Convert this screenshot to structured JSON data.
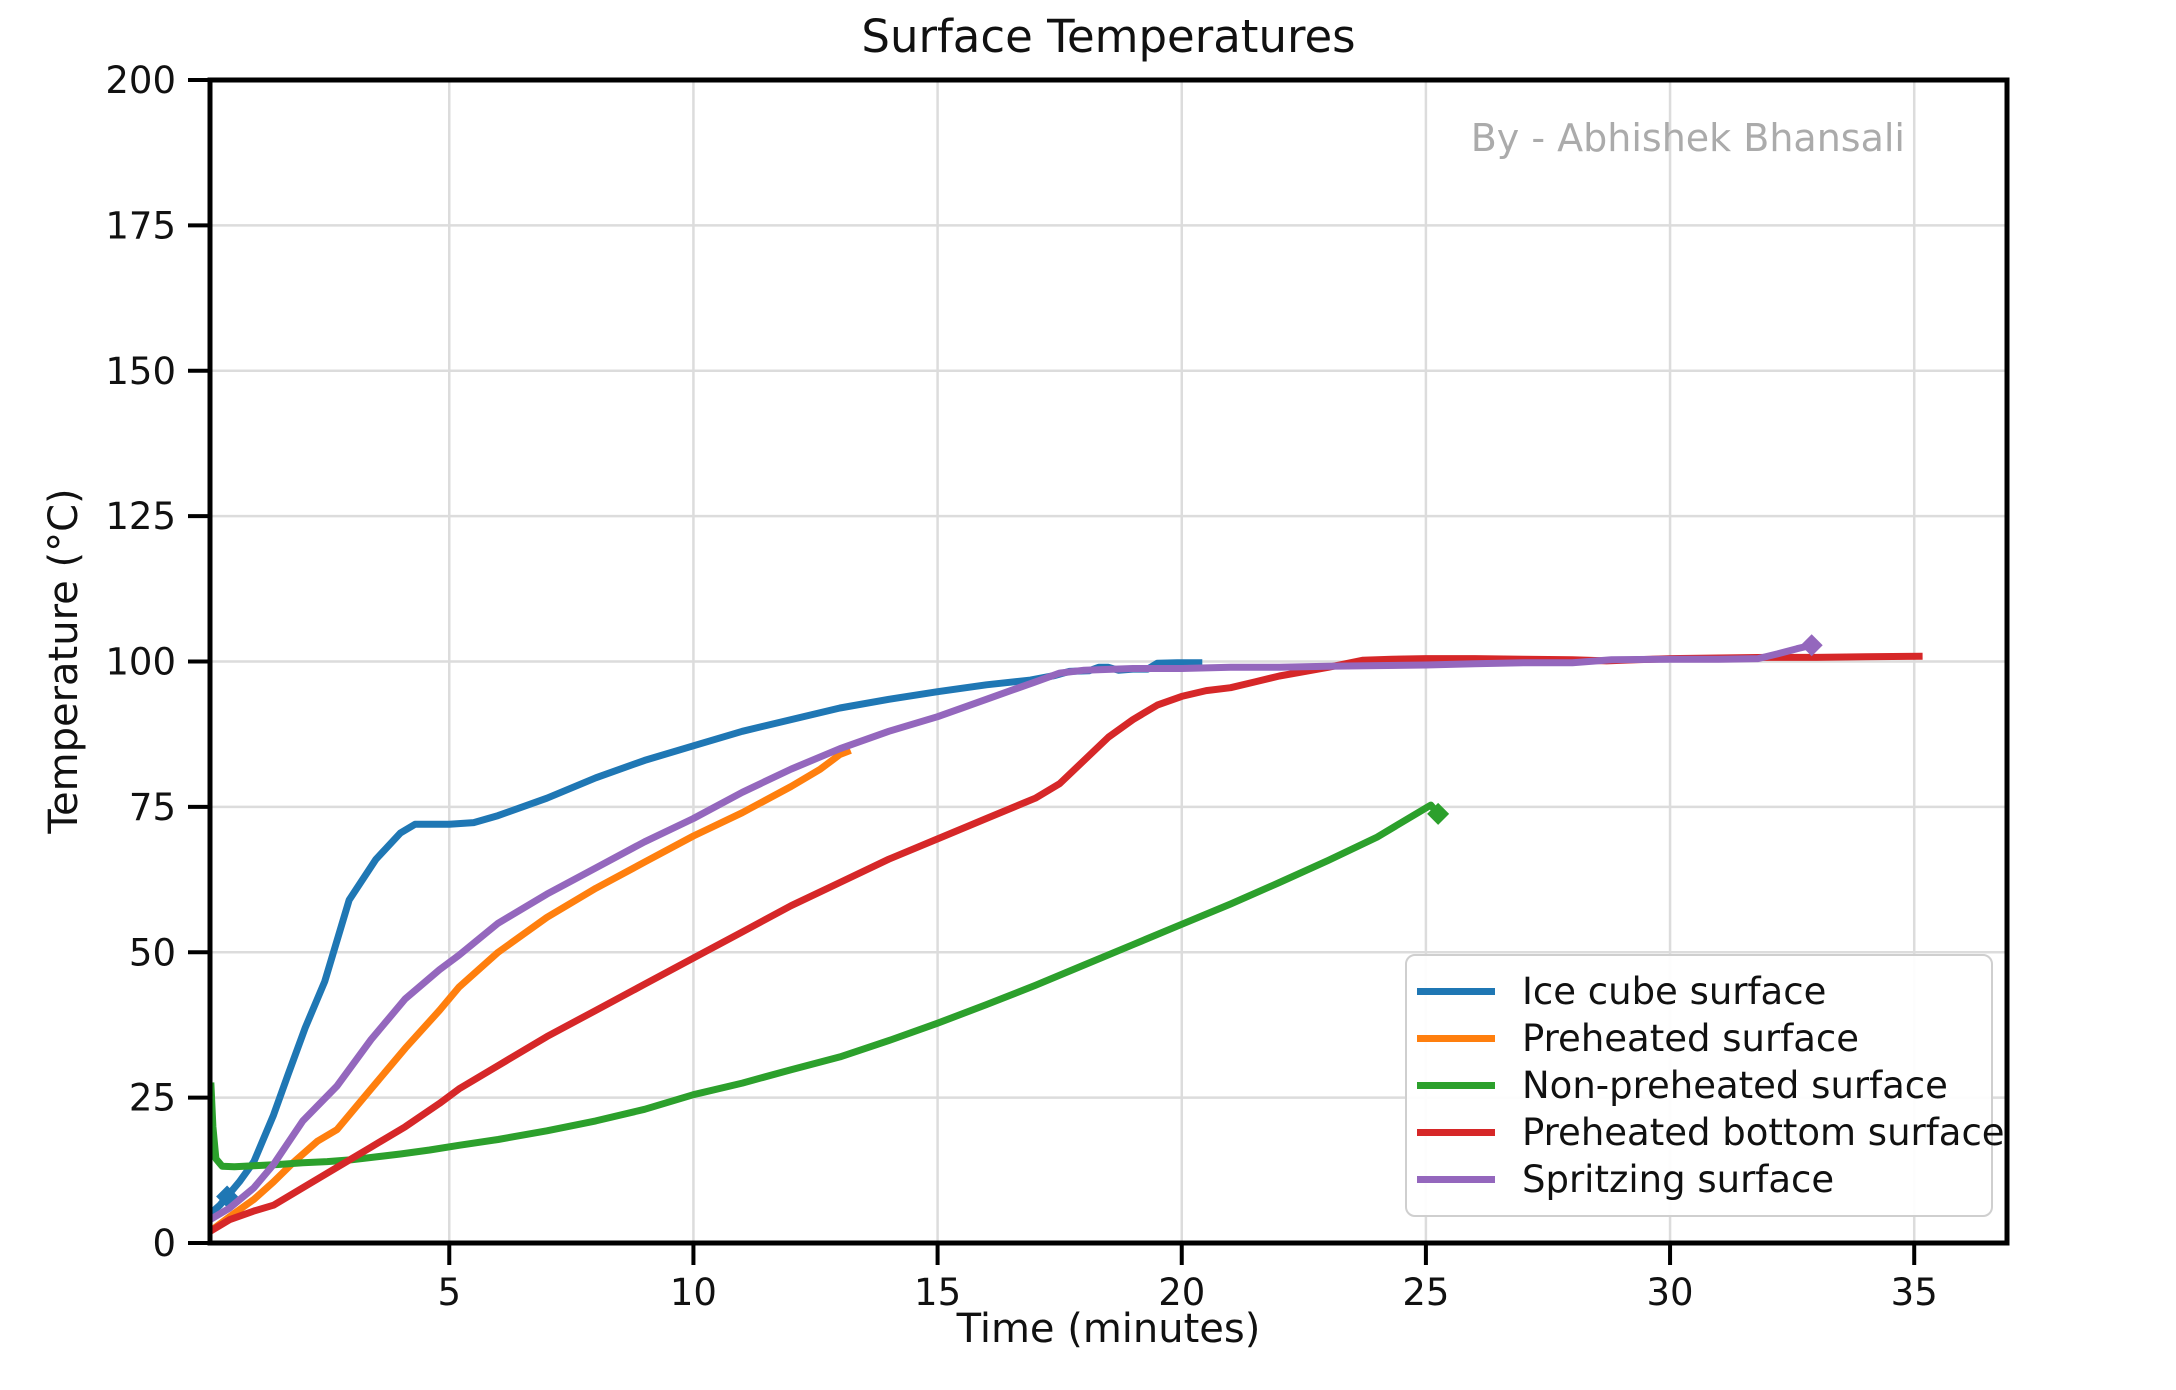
{
  "figure": {
    "watermark": "By - Abhishek Bhansali"
  },
  "chart_data": {
    "type": "line",
    "title": "Surface Temperatures",
    "xlabel": "Time (minutes)",
    "ylabel": "Temperature (°C)",
    "xlim": [
      0.1,
      36.9
    ],
    "ylim": [
      0,
      200
    ],
    "x_ticks": [
      5,
      10,
      15,
      20,
      25,
      30,
      35
    ],
    "y_ticks": [
      0,
      25,
      50,
      75,
      100,
      125,
      150,
      175,
      200
    ],
    "grid": true,
    "legend_position": "lower right",
    "colors": {
      "grid": "#dcdcdc",
      "spine": "#000000",
      "tick_label": "#111111",
      "watermark": "#ababab"
    },
    "series": [
      {
        "name": "Ice cube surface",
        "color": "#1f77b4",
        "markers": [
          [
            0.45,
            8
          ]
        ],
        "points": [
          [
            0.1,
            5
          ],
          [
            0.3,
            6.5
          ],
          [
            0.45,
            8
          ],
          [
            0.7,
            10.5
          ],
          [
            1.0,
            14
          ],
          [
            1.4,
            22
          ],
          [
            1.7,
            29
          ],
          [
            2.05,
            37
          ],
          [
            2.45,
            45
          ],
          [
            2.95,
            59
          ],
          [
            3.5,
            66
          ],
          [
            4.0,
            70.5
          ],
          [
            4.3,
            72
          ],
          [
            5.0,
            72
          ],
          [
            5.5,
            72.3
          ],
          [
            6,
            73.5
          ],
          [
            7,
            76.5
          ],
          [
            8,
            80
          ],
          [
            9,
            83
          ],
          [
            10,
            85.5
          ],
          [
            11,
            88
          ],
          [
            12,
            90
          ],
          [
            13,
            92
          ],
          [
            14,
            93.5
          ],
          [
            15,
            94.8
          ],
          [
            16,
            96
          ],
          [
            16.9,
            96.8
          ],
          [
            17.4,
            97.6
          ],
          [
            17.7,
            98.3
          ],
          [
            18.1,
            98.4
          ],
          [
            18.3,
            99
          ],
          [
            18.5,
            99
          ],
          [
            18.7,
            98.5
          ],
          [
            19.0,
            98.7
          ],
          [
            19.3,
            98.7
          ],
          [
            19.5,
            99.7
          ],
          [
            19.9,
            99.8
          ],
          [
            20.35,
            99.8
          ]
        ]
      },
      {
        "name": "Preheated surface",
        "color": "#ff7f0e",
        "markers": [],
        "points": [
          [
            0.1,
            2
          ],
          [
            0.5,
            4.5
          ],
          [
            1.0,
            7.5
          ],
          [
            1.4,
            10.5
          ],
          [
            1.8,
            13.8
          ],
          [
            2.3,
            17.5
          ],
          [
            2.7,
            19.5
          ],
          [
            3.4,
            26.5
          ],
          [
            4.1,
            33.5
          ],
          [
            4.8,
            40
          ],
          [
            5.2,
            44
          ],
          [
            6,
            50
          ],
          [
            7,
            56
          ],
          [
            8,
            61
          ],
          [
            9,
            65.5
          ],
          [
            10,
            70
          ],
          [
            11,
            74
          ],
          [
            12,
            78.5
          ],
          [
            12.6,
            81.5
          ],
          [
            13.0,
            84
          ],
          [
            13.15,
            84.5
          ]
        ]
      },
      {
        "name": "Non-preheated surface",
        "color": "#2ca02c",
        "markers": [
          [
            25.25,
            73.8
          ]
        ],
        "points": [
          [
            0.12,
            27
          ],
          [
            0.16,
            20
          ],
          [
            0.22,
            14.5
          ],
          [
            0.35,
            13.2
          ],
          [
            0.6,
            13.1
          ],
          [
            1,
            13.3
          ],
          [
            1.5,
            13.5
          ],
          [
            2,
            13.8
          ],
          [
            2.5,
            14
          ],
          [
            3,
            14.3
          ],
          [
            3.5,
            14.8
          ],
          [
            4,
            15.3
          ],
          [
            4.6,
            16
          ],
          [
            5.2,
            16.8
          ],
          [
            6,
            17.8
          ],
          [
            7,
            19.3
          ],
          [
            8,
            21
          ],
          [
            9,
            23
          ],
          [
            10,
            25.5
          ],
          [
            11,
            27.5
          ],
          [
            12,
            29.8
          ],
          [
            13,
            32
          ],
          [
            14,
            34.8
          ],
          [
            15,
            37.8
          ],
          [
            16,
            41
          ],
          [
            17,
            44.3
          ],
          [
            18,
            47.8
          ],
          [
            19,
            51.3
          ],
          [
            20,
            54.8
          ],
          [
            21,
            58.3
          ],
          [
            22,
            62
          ],
          [
            23,
            65.8
          ],
          [
            24,
            69.8
          ],
          [
            25,
            74.8
          ],
          [
            25.1,
            75.3
          ],
          [
            25.25,
            73.8
          ]
        ]
      },
      {
        "name": "Preheated bottom surface",
        "color": "#d62728",
        "markers": [],
        "points": [
          [
            0.1,
            2
          ],
          [
            0.5,
            4
          ],
          [
            1.0,
            5.5
          ],
          [
            1.4,
            6.5
          ],
          [
            2.0,
            9.5
          ],
          [
            2.7,
            13
          ],
          [
            3.4,
            16.5
          ],
          [
            4.1,
            20
          ],
          [
            4.8,
            24
          ],
          [
            5.2,
            26.5
          ],
          [
            6,
            30.5
          ],
          [
            7,
            35.5
          ],
          [
            8,
            40
          ],
          [
            9,
            44.5
          ],
          [
            10,
            49
          ],
          [
            11,
            53.5
          ],
          [
            12,
            58
          ],
          [
            13,
            62
          ],
          [
            14,
            66
          ],
          [
            15,
            69.5
          ],
          [
            16,
            73
          ],
          [
            17,
            76.5
          ],
          [
            17.5,
            79
          ],
          [
            18,
            83
          ],
          [
            18.5,
            87
          ],
          [
            19,
            90
          ],
          [
            19.5,
            92.5
          ],
          [
            20,
            94
          ],
          [
            20.5,
            95
          ],
          [
            21,
            95.5
          ],
          [
            21.5,
            96.5
          ],
          [
            22,
            97.5
          ],
          [
            23,
            99
          ],
          [
            23.7,
            100.2
          ],
          [
            24.3,
            100.4
          ],
          [
            25,
            100.5
          ],
          [
            26,
            100.5
          ],
          [
            27,
            100.4
          ],
          [
            28,
            100.3
          ],
          [
            28.7,
            100.1
          ],
          [
            29.3,
            100.3
          ],
          [
            30,
            100.5
          ],
          [
            31,
            100.6
          ],
          [
            32,
            100.7
          ],
          [
            33,
            100.7
          ],
          [
            34,
            100.8
          ],
          [
            35.1,
            100.9
          ]
        ]
      },
      {
        "name": "Spritzing surface",
        "color": "#9467bd",
        "markers": [
          [
            32.9,
            102.8
          ]
        ],
        "points": [
          [
            0.1,
            4
          ],
          [
            0.5,
            6
          ],
          [
            1.0,
            9.5
          ],
          [
            1.4,
            13.5
          ],
          [
            2.0,
            21
          ],
          [
            2.7,
            27
          ],
          [
            3.4,
            35
          ],
          [
            4.1,
            42
          ],
          [
            4.8,
            47
          ],
          [
            5.2,
            49.5
          ],
          [
            6,
            55
          ],
          [
            7,
            60
          ],
          [
            8,
            64.5
          ],
          [
            9,
            69
          ],
          [
            10,
            73
          ],
          [
            11,
            77.5
          ],
          [
            12,
            81.5
          ],
          [
            13,
            85
          ],
          [
            14,
            88
          ],
          [
            15,
            90.5
          ],
          [
            16,
            93.5
          ],
          [
            16.5,
            95
          ],
          [
            17,
            96.5
          ],
          [
            17.5,
            98
          ],
          [
            18,
            98.5
          ],
          [
            19,
            98.8
          ],
          [
            20,
            98.8
          ],
          [
            21,
            99
          ],
          [
            22,
            99
          ],
          [
            23,
            99.2
          ],
          [
            24,
            99.3
          ],
          [
            25,
            99.4
          ],
          [
            26,
            99.6
          ],
          [
            27,
            99.8
          ],
          [
            28,
            99.8
          ],
          [
            28.8,
            100.3
          ],
          [
            30,
            100.4
          ],
          [
            31,
            100.4
          ],
          [
            31.8,
            100.5
          ],
          [
            32.2,
            101.3
          ],
          [
            32.6,
            102.2
          ],
          [
            32.9,
            102.8
          ]
        ]
      }
    ]
  }
}
